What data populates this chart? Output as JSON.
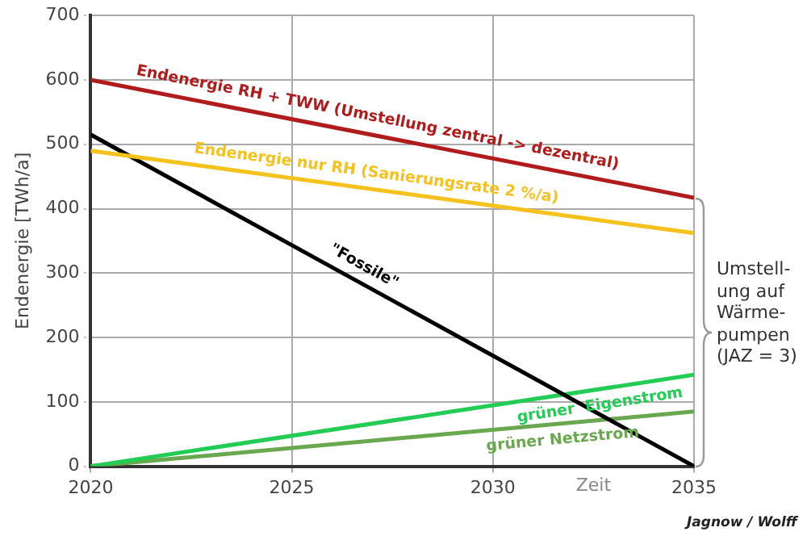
{
  "chart_data": {
    "type": "line",
    "ylabel": "Endenergie [TWh/a]",
    "xlabel": "Zeit",
    "x": [
      2020,
      2035
    ],
    "xlim": [
      2020,
      2035
    ],
    "xticks": [
      2020,
      2025,
      2030,
      2035
    ],
    "ylim": [
      0,
      700
    ],
    "yticks": [
      0,
      100,
      200,
      300,
      400,
      500,
      600,
      700
    ],
    "grid": true,
    "legend": false,
    "marker": "none",
    "line_style": "solid",
    "series": [
      {
        "name": "Endenergie RH + TWW (Umstellung zentral -> dezentral)",
        "color": "#b01c1c",
        "values": [
          600,
          417
        ]
      },
      {
        "name": "Endenergie nur RH (Sanierungsrate 2 %/a)",
        "color": "#f5c11c",
        "values": [
          490,
          362
        ]
      },
      {
        "name": "\"Fossile\"",
        "color": "#000000",
        "values": [
          515,
          0
        ]
      },
      {
        "name": "grüner  Eigenstrom",
        "color": "#22cc55",
        "values": [
          0,
          142
        ]
      },
      {
        "name": "grüner Netzstrom",
        "color": "#6aa84f",
        "values": [
          0,
          85
        ]
      }
    ],
    "annotations": [
      "Umstell-\nung auf\nWärme-\npumpen\n(JAZ = 3)",
      "Jagnow / Wolff"
    ]
  }
}
